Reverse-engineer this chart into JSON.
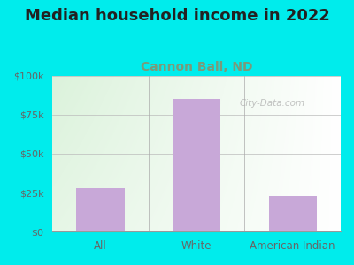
{
  "title": "Median household income in 2022",
  "subtitle": "Cannon Ball, ND",
  "categories": [
    "All",
    "White",
    "American Indian"
  ],
  "values": [
    28000,
    85000,
    23000
  ],
  "bar_color": "#C8A8D8",
  "background_color": "#00ECEC",
  "title_color": "#222222",
  "subtitle_color": "#7A9A7A",
  "tick_label_color": "#666666",
  "ylim": [
    0,
    100000
  ],
  "yticks": [
    0,
    25000,
    50000,
    75000,
    100000
  ],
  "ytick_labels": [
    "$0",
    "$25k",
    "$50k",
    "$75k",
    "$100k"
  ],
  "watermark": "City-Data.com",
  "figwidth": 4.0,
  "figheight": 3.0,
  "dpi": 100,
  "title_fontsize": 13,
  "subtitle_fontsize": 10,
  "bar_width": 0.5
}
